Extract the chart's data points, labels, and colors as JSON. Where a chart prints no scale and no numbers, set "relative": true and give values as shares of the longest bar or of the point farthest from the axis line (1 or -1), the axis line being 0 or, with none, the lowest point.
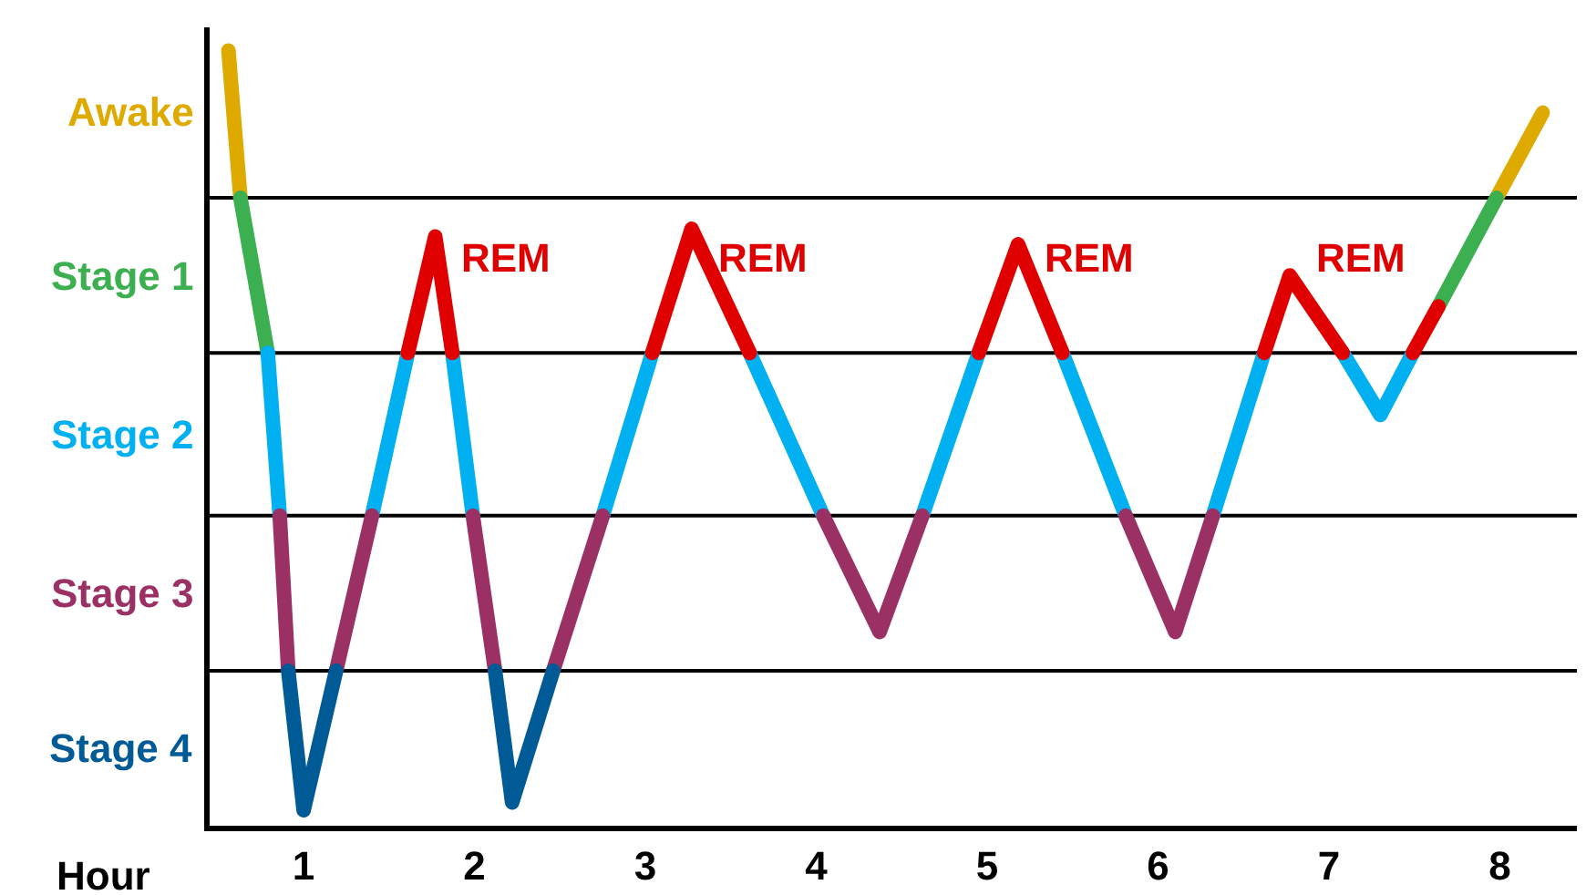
{
  "chart_data": {
    "type": "line",
    "relative": true,
    "xlabel": "Hour",
    "grid": false,
    "line_style": "solid",
    "xlim": [
      0.45,
      8.45
    ],
    "xticks": [
      1,
      2,
      3,
      4,
      5,
      6,
      7,
      8
    ],
    "ref_lines": [
      {
        "axis": "y",
        "value": 0.2,
        "color": "#000000"
      },
      {
        "axis": "y",
        "value": 0.4,
        "color": "#000000"
      },
      {
        "axis": "y",
        "value": 0.61,
        "color": "#000000"
      },
      {
        "axis": "y",
        "value": 0.81,
        "color": "#000000"
      }
    ],
    "series": [
      {
        "color": "#dfaa00",
        "x": [
          0.56,
          0.63,
          null,
          7.98,
          8.25
        ],
        "values": [
          1,
          0.81,
          null,
          0.81,
          0.92
        ]
      },
      {
        "color": "#3cb050",
        "x": [
          0.63,
          0.79,
          null,
          7.64,
          7.98
        ],
        "values": [
          0.81,
          0.61,
          null,
          0.67,
          0.81
        ]
      },
      {
        "color": "#00b0f0",
        "x": [
          0.79,
          0.86,
          null,
          1.4,
          1.61,
          null,
          1.87,
          1.99,
          null,
          2.75,
          3.04,
          null,
          3.61,
          4.04,
          null,
          4.62,
          4.95,
          null,
          5.44,
          5.81,
          null,
          6.32,
          6.62,
          null,
          7.08,
          7.3,
          7.49
        ],
        "values": [
          0.61,
          0.4,
          null,
          0.4,
          0.61,
          null,
          0.61,
          0.4,
          null,
          0.4,
          0.61,
          null,
          0.61,
          0.4,
          null,
          0.4,
          0.61,
          null,
          0.61,
          0.4,
          null,
          0.4,
          0.61,
          null,
          0.61,
          0.53,
          0.61
        ]
      },
      {
        "color": "#9b3064",
        "x": [
          0.86,
          0.91,
          null,
          1.19,
          1.4,
          null,
          1.99,
          2.12,
          null,
          2.46,
          2.75,
          null,
          4.04,
          4.37,
          4.62,
          null,
          5.81,
          6.1,
          6.32
        ],
        "values": [
          0.4,
          0.2,
          null,
          0.2,
          0.4,
          null,
          0.4,
          0.2,
          null,
          0.2,
          0.4,
          null,
          0.4,
          0.25,
          0.4,
          null,
          0.4,
          0.25,
          0.4
        ]
      },
      {
        "color": "#005a96",
        "x": [
          0.91,
          1.0,
          1.19,
          null,
          2.12,
          2.22,
          2.46
        ],
        "values": [
          0.2,
          0.02,
          0.2,
          null,
          0.2,
          0.03,
          0.2
        ]
      },
      {
        "color": "#e00000",
        "x": [
          1.61,
          1.77,
          1.87,
          null,
          3.04,
          3.27,
          3.61,
          null,
          4.95,
          5.18,
          5.44,
          null,
          6.62,
          6.77,
          7.08,
          null,
          7.49,
          7.64
        ],
        "values": [
          0.61,
          0.76,
          0.61,
          null,
          0.61,
          0.77,
          0.61,
          null,
          0.61,
          0.75,
          0.61,
          null,
          0.61,
          0.71,
          0.61,
          null,
          0.61,
          0.67
        ]
      }
    ],
    "annotations": [
      "Stage 4",
      "Stage 3",
      "Stage 2",
      "Stage 1",
      "Awake",
      "REM",
      "REM",
      "REM",
      "REM"
    ]
  }
}
